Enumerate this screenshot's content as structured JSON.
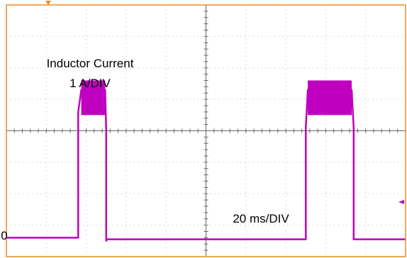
{
  "chart_data": {
    "type": "line",
    "annotation_title": "Inductor Current",
    "annotation_vertical_scale": "1 A/DIV",
    "annotation_horizontal_scale": "20 ms/DIV",
    "zero_marker_label": "0",
    "grid": true,
    "divisions": {
      "horizontal": 10,
      "vertical": 8
    },
    "time_per_div_ms": 20,
    "current_per_div_A": 1,
    "xlim_ms": [
      0,
      200
    ],
    "ylim_A": [
      -0.5,
      7.5
    ],
    "series": [
      {
        "name": "",
        "color": "#c000c0",
        "points_ms_A": [
          [
            0,
            0.1
          ],
          [
            36,
            0.1
          ],
          [
            36,
            4.1
          ],
          [
            37.5,
            4.8
          ],
          [
            49.5,
            4.8
          ],
          [
            50,
            3.5
          ],
          [
            50,
            0
          ],
          [
            50.5,
            0.05
          ],
          [
            150,
            0.05
          ],
          [
            150,
            3.6
          ],
          [
            151,
            4.8
          ],
          [
            173,
            4.8
          ],
          [
            174,
            3.6
          ],
          [
            174,
            0.05
          ],
          [
            200,
            0.05
          ]
        ],
        "ripple_bands_ms_A": [
          {
            "x_start": 37.5,
            "x_end": 49.5,
            "low": 4.0,
            "high": 5.1
          },
          {
            "x_start": 151,
            "x_end": 173,
            "low": 4.0,
            "high": 5.1
          }
        ]
      }
    ]
  },
  "colors": {
    "trace": "#c000c0",
    "grid": "#bdbdbd",
    "center_axis": "#666666",
    "frame": "#f08a1e",
    "trigger_marker": "#f08a1e",
    "level_marker": "#c000c0"
  }
}
